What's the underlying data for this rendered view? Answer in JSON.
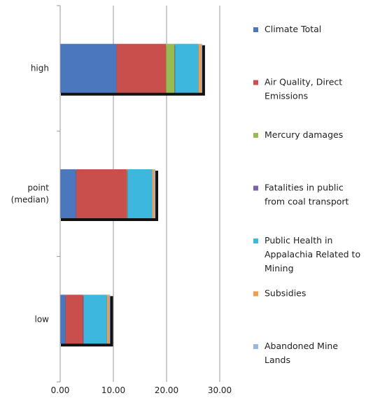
{
  "chart_data": {
    "type": "bar",
    "orientation": "horizontal",
    "stacked": true,
    "categories": [
      "high",
      "point (median)",
      "low"
    ],
    "category_label_lines": [
      [
        "high"
      ],
      [
        "point",
        "(median)"
      ],
      [
        "low"
      ]
    ],
    "xlim": [
      0,
      30
    ],
    "x_ticks": [
      0,
      10,
      20,
      30
    ],
    "x_tick_labels": [
      "0.00",
      "10.00",
      "20.00",
      "30.00"
    ],
    "grid": "vertical",
    "legend_position": "right",
    "series": [
      {
        "name": "Climate Total",
        "legend_lines": [
          "Climate Total"
        ],
        "color": "#4b77be",
        "values": [
          10.6,
          3.0,
          1.0
        ]
      },
      {
        "name": "Air Quality, Direct Emissions",
        "legend_lines": [
          "Air Quality, Direct",
          "Emissions"
        ],
        "color": "#c94f4c",
        "values": [
          9.3,
          9.5,
          3.3
        ]
      },
      {
        "name": "Mercury damages",
        "legend_lines": [
          "Mercury damages"
        ],
        "color": "#97bd52",
        "values": [
          1.6,
          0.1,
          0.0
        ]
      },
      {
        "name": "Fatalities in public from coal transport",
        "legend_lines": [
          "Fatalities in public",
          "from coal transport"
        ],
        "color": "#7f62a3",
        "values": [
          0.1,
          0.1,
          0.1
        ]
      },
      {
        "name": "Public Health in Appalachia Related to Mining",
        "legend_lines": [
          "Public Health in",
          "Appalachia Related to",
          "Mining"
        ],
        "color": "#3db7dd",
        "values": [
          4.4,
          4.6,
          4.4
        ]
      },
      {
        "name": "Subsidies",
        "legend_lines": [
          "Subsidies"
        ],
        "color": "#f29e4d",
        "values": [
          0.5,
          0.4,
          0.4
        ]
      },
      {
        "name": "Abandoned Mine Lands",
        "legend_lines": [
          "Abandoned Mine",
          "Lands"
        ],
        "color": "#9bb7df",
        "values": [
          0.2,
          0.2,
          0.2
        ]
      }
    ]
  }
}
